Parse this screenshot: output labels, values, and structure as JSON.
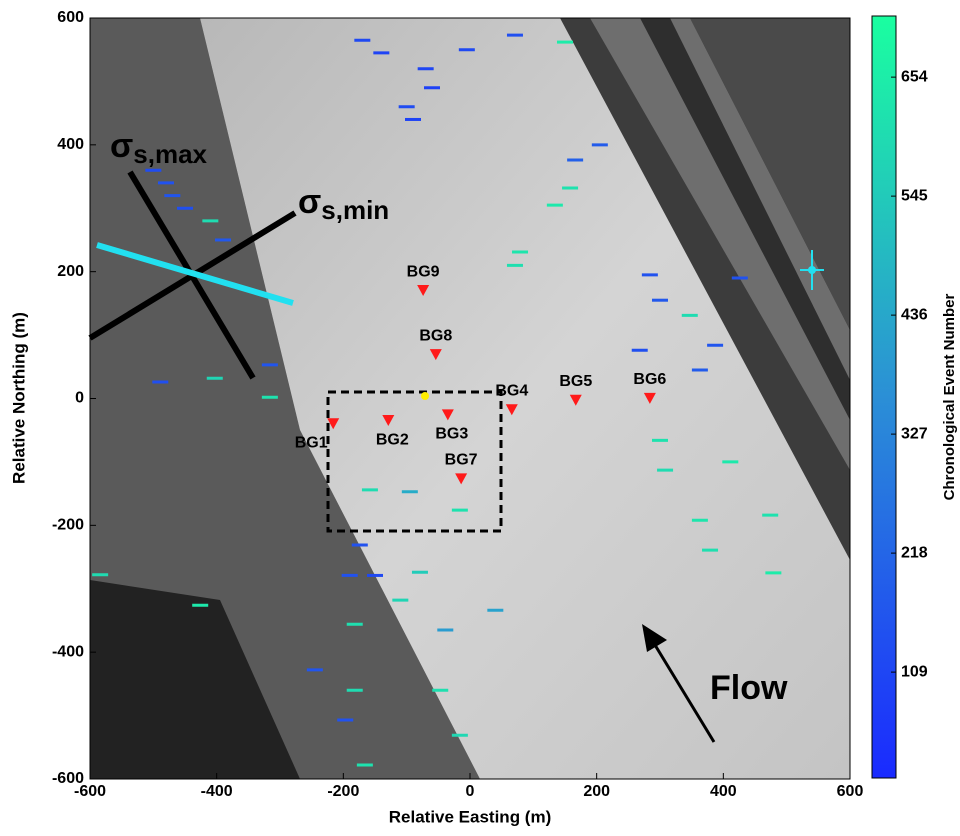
{
  "chart_data": {
    "type": "scatter",
    "xlabel": "Relative Easting (m)",
    "ylabel": "Relative Northing (m)",
    "xlim": [
      -600,
      600
    ],
    "ylim": [
      -600,
      600
    ],
    "xticks": [
      -600,
      -400,
      -200,
      0,
      200,
      400,
      600
    ],
    "yticks": [
      -600,
      -400,
      -200,
      0,
      200,
      400,
      600
    ],
    "colorbar": {
      "label": "Chronological Event Number",
      "clim": [
        12,
        710
      ],
      "ticks": [
        109,
        218,
        327,
        436,
        545,
        654
      ],
      "colors": [
        "#1a2aff",
        "#2b8fd6",
        "#1affa0"
      ]
    },
    "events": {
      "x": [
        -170,
        -140,
        -60,
        -70,
        -100,
        -90,
        150,
        71,
        -5,
        -480,
        -470,
        -450,
        -500,
        -410,
        -390,
        166,
        205,
        158,
        134,
        71,
        79,
        284,
        300,
        347,
        387,
        363,
        268,
        300,
        308,
        411,
        363,
        379,
        474,
        479,
        -158,
        -95,
        -16,
        -174,
        -150,
        -190,
        -79,
        -110,
        40,
        -39,
        -245,
        -182,
        -47,
        -16,
        -197,
        -166,
        -426,
        -584,
        -182,
        -489,
        -316,
        -403,
        -316,
        426
      ],
      "y": [
        565,
        545,
        490,
        520,
        460,
        440,
        562,
        573,
        550,
        340,
        320,
        300,
        360,
        280,
        250,
        376,
        400,
        332,
        305,
        210,
        231,
        195,
        155,
        131,
        84,
        45,
        76,
        -66,
        -113,
        -100,
        -192,
        -239,
        -184,
        -275,
        -144,
        -147,
        -176,
        -231,
        -279,
        -279,
        -274,
        -318,
        -334,
        -365,
        -428,
        -460,
        -460,
        -531,
        -507,
        -578,
        -326,
        -278,
        -356,
        26,
        2,
        32,
        53,
        190
      ],
      "values": [
        120,
        100,
        90,
        110,
        130,
        100,
        650,
        140,
        120,
        150,
        160,
        140,
        130,
        600,
        170,
        200,
        180,
        620,
        640,
        610,
        630,
        150,
        170,
        600,
        160,
        180,
        140,
        620,
        600,
        640,
        630,
        610,
        620,
        650,
        600,
        450,
        620,
        150,
        120,
        150,
        550,
        580,
        420,
        400,
        160,
        600,
        610,
        590,
        150,
        620,
        640,
        600,
        610,
        140,
        620,
        580,
        160,
        150
      ]
    },
    "stations": {
      "labels": [
        "BG1",
        "BG2",
        "BG3",
        "BG4",
        "BG5",
        "BG6",
        "BG7",
        "BG8",
        "BG9"
      ],
      "x": [
        -216,
        -129,
        -35,
        66,
        167,
        284,
        -14,
        -54,
        -74
      ],
      "y": [
        -39,
        -34,
        -25,
        -17,
        -2,
        1,
        -126,
        70,
        171
      ],
      "color": "#ff1a1a"
    },
    "annotations": [
      {
        "symbol": "σ",
        "subscript": "s,max"
      },
      {
        "symbol": "σ",
        "subscript": "s,min"
      },
      {
        "text": "Flow"
      }
    ]
  }
}
